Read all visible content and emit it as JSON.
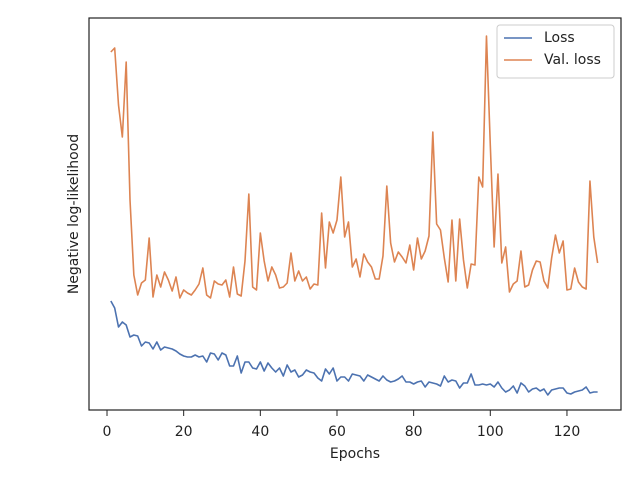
{
  "chart_data": {
    "type": "line",
    "xlabel": "Epochs",
    "ylabel": "Negative log-likelihood",
    "x": [
      1,
      2,
      3,
      4,
      5,
      6,
      7,
      8,
      9,
      10,
      11,
      12,
      13,
      14,
      15,
      16,
      17,
      18,
      19,
      20,
      21,
      22,
      23,
      24,
      25,
      26,
      27,
      28,
      29,
      30,
      31,
      32,
      33,
      34,
      35,
      36,
      37,
      38,
      39,
      40,
      41,
      42,
      43,
      44,
      45,
      46,
      47,
      48,
      49,
      50,
      51,
      52,
      53,
      54,
      55,
      56,
      57,
      58,
      59,
      60,
      61,
      62,
      63,
      64,
      65,
      66,
      67,
      68,
      69,
      70,
      71,
      72,
      73,
      74,
      75,
      76,
      77,
      78,
      79,
      80,
      81,
      82,
      83,
      84,
      85,
      86,
      87,
      88,
      89,
      90,
      91,
      92,
      93,
      94,
      95,
      96,
      97,
      98,
      99,
      100,
      101,
      102,
      103,
      104,
      105,
      106,
      107,
      108,
      109,
      110,
      111,
      112,
      113,
      114,
      115,
      116,
      117,
      118,
      119,
      120,
      121,
      122,
      123,
      124,
      125,
      126,
      127,
      128
    ],
    "series": [
      {
        "name": "Loss",
        "color": "#4c72b0",
        "values": [
          109,
          102,
          83,
          88,
          85,
          73,
          75,
          74,
          64,
          68,
          67,
          61,
          68,
          60,
          63,
          62,
          61,
          59,
          56,
          54,
          53,
          53,
          55,
          53,
          54,
          48,
          57,
          56,
          50,
          57,
          55,
          44,
          44,
          54,
          37,
          48,
          48,
          42,
          41,
          48,
          39,
          47,
          42,
          38,
          42,
          34,
          45,
          38,
          40,
          33,
          35,
          40,
          38,
          37,
          32,
          29,
          41,
          36,
          42,
          29,
          33,
          33,
          29,
          36,
          35,
          34,
          29,
          35,
          33,
          31,
          29,
          34,
          30,
          28,
          29,
          31,
          34,
          28,
          28,
          26,
          28,
          29,
          23,
          28,
          27,
          26,
          24,
          34,
          28,
          30,
          29,
          22,
          27,
          27,
          36,
          25,
          25,
          26,
          25,
          26,
          23,
          28,
          22,
          18,
          20,
          24,
          17,
          27,
          24,
          18,
          21,
          22,
          19,
          21,
          15,
          20,
          21,
          22,
          22,
          17,
          16,
          18,
          19,
          20,
          23,
          17,
          18,
          18
        ]
      },
      {
        "name": "Val. loss",
        "color": "#dd8452",
        "values": [
          358,
          362,
          305,
          273,
          348,
          210,
          135,
          115,
          127,
          130,
          172,
          113,
          135,
          123,
          138,
          130,
          119,
          133,
          112,
          120,
          117,
          115,
          120,
          126,
          142,
          115,
          112,
          129,
          126,
          125,
          130,
          113,
          143,
          116,
          114,
          149,
          216,
          123,
          120,
          177,
          149,
          129,
          143,
          135,
          122,
          123,
          127,
          157,
          129,
          139,
          129,
          133,
          121,
          126,
          125,
          197,
          142,
          188,
          177,
          190,
          233,
          173,
          188,
          143,
          151,
          133,
          156,
          148,
          143,
          131,
          131,
          154,
          224,
          167,
          148,
          158,
          153,
          147,
          165,
          140,
          172,
          151,
          159,
          174,
          278,
          186,
          180,
          152,
          128,
          190,
          129,
          191,
          150,
          122,
          146,
          145,
          233,
          223,
          374,
          265,
          163,
          236,
          147,
          163,
          118,
          126,
          129,
          159,
          123,
          125,
          140,
          149,
          148,
          129,
          122,
          152,
          175,
          157,
          169,
          120,
          121,
          142,
          128,
          123,
          121,
          229,
          173,
          147
        ]
      }
    ],
    "xlim": [
      -4.7,
      134.1
    ],
    "xticks": [
      0,
      20,
      40,
      60,
      80,
      100,
      120
    ],
    "ylim": [
      0,
      392
    ],
    "legend": "upper right"
  }
}
